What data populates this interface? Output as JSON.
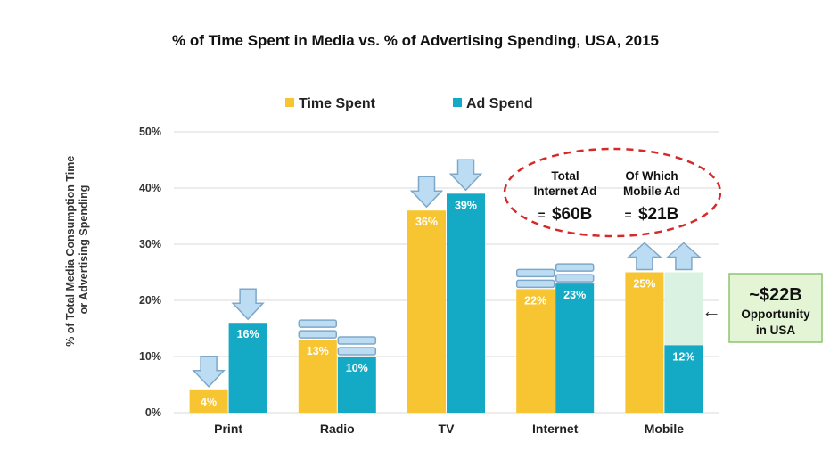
{
  "chart_data": {
    "type": "bar",
    "title": "% of Time Spent in Media vs. % of Advertising Spending, USA, 2015",
    "ylabel": "% of Total Media Consumption Time or Advertising Spending",
    "ylabel_lines": [
      "% of Total Media Consumption Time",
      "or Advertising Spending"
    ],
    "xlabel": "",
    "categories": [
      "Print",
      "Radio",
      "TV",
      "Internet",
      "Mobile"
    ],
    "series": [
      {
        "name": "Time Spent",
        "color": "#f7c532",
        "values": [
          4,
          13,
          36,
          22,
          25
        ],
        "labels": [
          "4%",
          "13%",
          "36%",
          "22%",
          "25%"
        ],
        "trend": [
          "down",
          "flat",
          "down",
          "flat",
          "up"
        ]
      },
      {
        "name": "Ad Spend",
        "color": "#14a9c4",
        "values": [
          16,
          10,
          39,
          23,
          12
        ],
        "labels": [
          "16%",
          "10%",
          "39%",
          "23%",
          "12%"
        ],
        "trend": [
          "down",
          "flat",
          "down",
          "flat",
          "up"
        ]
      }
    ],
    "opportunity_gap": {
      "category": "Mobile",
      "from": 12,
      "to": 25,
      "color": "#d9f2e1"
    },
    "ylim": [
      0,
      50
    ],
    "yticks": [
      0,
      10,
      20,
      30,
      40,
      50
    ],
    "ytick_labels": [
      "0%",
      "10%",
      "20%",
      "30%",
      "40%",
      "50%"
    ],
    "grid": true,
    "legend_position": "top"
  },
  "annotations": {
    "internet_total": {
      "line1": "Total",
      "line2": "Internet Ad",
      "prefix": "=",
      "value": "$60B"
    },
    "mobile_total": {
      "line1": "Of Which",
      "line2": "Mobile Ad",
      "prefix": "=",
      "value": "$21B"
    },
    "opportunity": {
      "value": "~$22B",
      "line1": "Opportunity",
      "line2": "in USA",
      "arrow": "←"
    }
  },
  "colors": {
    "arrow_fill": "#bcdcf3",
    "arrow_stroke": "#7fa7c8",
    "ellipse_stroke": "#d62a2a",
    "box_fill": "#e4f5d6",
    "box_stroke": "#8fc472",
    "grid": "#d9d9d9"
  },
  "icons": {
    "trend_down": "down-arrow-icon",
    "trend_up": "up-arrow-icon",
    "trend_flat": "flat-bars-icon"
  }
}
